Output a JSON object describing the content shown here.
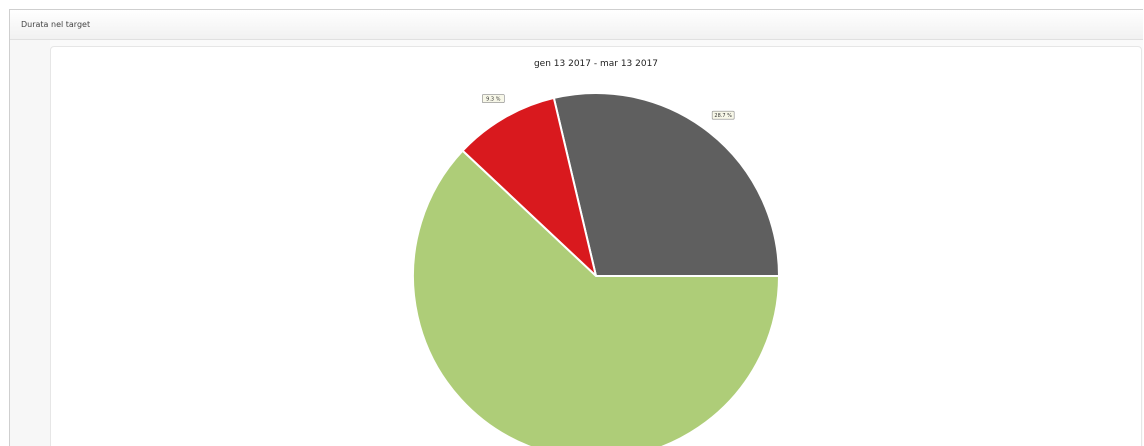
{
  "panel": {
    "title": "Durata nel target"
  },
  "chart_data": {
    "type": "pie",
    "title": "gen 13 2017 - mar 13 2017",
    "slices": [
      {
        "value": 28.7,
        "label": "28.7 %",
        "color": "#5f5f5f"
      },
      {
        "value": 9.3,
        "label": "9.3 %",
        "color": "#d9191e"
      },
      {
        "value": 62.0,
        "label": "",
        "color": "#aecd78"
      }
    ],
    "start_angle_deg": 0,
    "direction": "counterclockwise",
    "legend": "none"
  }
}
